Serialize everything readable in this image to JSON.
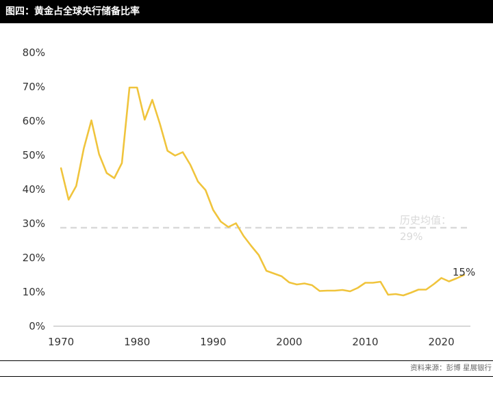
{
  "header": {
    "title": "图四：黄金占全球央行储备比率"
  },
  "footer": {
    "source": "资料来源：彭博 星展银行"
  },
  "colors": {
    "series": "#F0C43C",
    "reference_line": "#D9D9D9",
    "axis": "#BFBFBF",
    "title_bar": "#000000"
  },
  "chart_data": {
    "type": "line",
    "title": "",
    "xlabel": "",
    "ylabel": "",
    "xlim": [
      1969,
      2024
    ],
    "ylim": [
      0,
      80
    ],
    "x_ticks": [
      1970,
      1980,
      1990,
      2000,
      2010,
      2020
    ],
    "x_tick_labels": [
      "1970",
      "1980",
      "1990",
      "2000",
      "2010",
      "2020"
    ],
    "y_ticks": [
      0,
      10,
      20,
      30,
      40,
      50,
      60,
      70,
      80
    ],
    "y_tick_labels": [
      "0%",
      "10%",
      "20%",
      "30%",
      "40%",
      "50%",
      "60%",
      "70%",
      "80%"
    ],
    "grid": false,
    "legend": "none",
    "series": [
      {
        "x": [
          1970,
          1971,
          1972,
          1973,
          1974,
          1975,
          1976,
          1977,
          1978,
          1979,
          1980,
          1981,
          1982,
          1983,
          1984,
          1985,
          1986,
          1987,
          1988,
          1989,
          1990,
          1991,
          1992,
          1993,
          1994,
          1995,
          1996,
          1997,
          1998,
          1999,
          2000,
          2001,
          2002,
          2003,
          2004,
          2005,
          2006,
          2007,
          2008,
          2009,
          2010,
          2011,
          2012,
          2013,
          2014,
          2015,
          2016,
          2017,
          2018,
          2019,
          2020,
          2021,
          2022,
          2023
        ],
        "values": [
          46.2,
          37.0,
          41.0,
          52.0,
          60.2,
          50.3,
          44.8,
          43.3,
          47.7,
          69.8,
          69.8,
          60.4,
          66.2,
          59.2,
          51.3,
          49.9,
          50.9,
          47.2,
          42.3,
          39.8,
          34.0,
          30.6,
          29.0,
          30.1,
          26.4,
          23.5,
          20.8,
          16.2,
          15.4,
          14.6,
          12.8,
          12.2,
          12.5,
          12.0,
          10.3,
          10.4,
          10.4,
          10.6,
          10.2,
          11.2,
          12.7,
          12.7,
          13.0,
          9.2,
          9.4,
          9.0,
          9.8,
          10.7,
          10.7,
          12.3,
          14.1,
          13.1,
          14.0,
          15.0
        ]
      }
    ],
    "reference_line": {
      "value": 28.8,
      "label_line1": "历史均值：",
      "label_line2": "29%"
    },
    "end_label": "15%"
  }
}
